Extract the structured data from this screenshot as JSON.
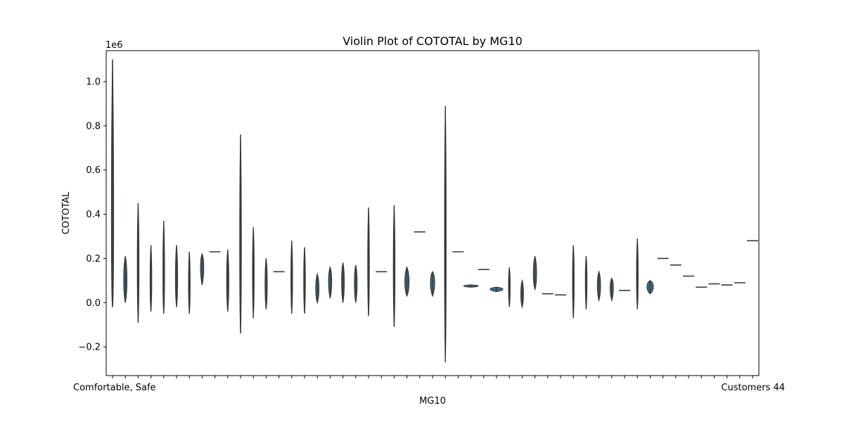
{
  "chart_data": {
    "type": "violin",
    "title": "Violin Plot of COTOTAL by MG10",
    "xlabel": "MG10",
    "ylabel": "COTOTAL",
    "y_offset_label": "1e6",
    "ylim": [
      -0.33,
      1.14
    ],
    "yticks": [
      -0.2,
      0.0,
      0.2,
      0.4,
      0.6,
      0.8,
      1.0
    ],
    "ytick_labels": [
      "−0.2",
      "0.0",
      "0.2",
      "0.4",
      "0.6",
      "0.8",
      "1.0"
    ],
    "grid": false,
    "legend": "none",
    "x_tick_labels_overlapping_text": "Comfortable, Safe",
    "x_tick_labels_overlapping_text_end": "Customers 44",
    "colors": {
      "violin_fill": "#3a6a82",
      "violin_line": "#3a3a3a"
    },
    "violins": [
      {
        "min": -0.02,
        "max": 1.1,
        "center": 0.05,
        "width": 2
      },
      {
        "min": 0.0,
        "max": 0.21,
        "center": 0.08,
        "width": 3
      },
      {
        "min": -0.09,
        "max": 0.45,
        "center": 0.1,
        "width": 1.5
      },
      {
        "min": -0.04,
        "max": 0.26,
        "center": 0.06,
        "width": 1.5
      },
      {
        "min": -0.05,
        "max": 0.37,
        "center": 0.05,
        "width": 1.5
      },
      {
        "min": -0.02,
        "max": 0.26,
        "center": 0.07,
        "width": 2
      },
      {
        "min": -0.05,
        "max": 0.23,
        "center": 0.05,
        "width": 1.5
      },
      {
        "min": 0.08,
        "max": 0.22,
        "center": 0.16,
        "width": 3
      },
      {
        "min": 0.23,
        "max": 0.23,
        "center": 0.23,
        "width": 16
      },
      {
        "min": -0.04,
        "max": 0.24,
        "center": 0.07,
        "width": 2
      },
      {
        "min": -0.14,
        "max": 0.76,
        "center": 0.1,
        "width": 1.5
      },
      {
        "min": -0.07,
        "max": 0.34,
        "center": 0.1,
        "width": 1.5
      },
      {
        "min": -0.03,
        "max": 0.2,
        "center": 0.06,
        "width": 2
      },
      {
        "min": 0.14,
        "max": 0.14,
        "center": 0.14,
        "width": 16
      },
      {
        "min": -0.05,
        "max": 0.28,
        "center": 0.08,
        "width": 1.5
      },
      {
        "min": -0.05,
        "max": 0.25,
        "center": 0.07,
        "width": 1.5
      },
      {
        "min": 0.0,
        "max": 0.13,
        "center": 0.05,
        "width": 3
      },
      {
        "min": 0.02,
        "max": 0.16,
        "center": 0.09,
        "width": 3
      },
      {
        "min": 0.0,
        "max": 0.18,
        "center": 0.08,
        "width": 2.5
      },
      {
        "min": 0.0,
        "max": 0.17,
        "center": 0.08,
        "width": 2.5
      },
      {
        "min": -0.06,
        "max": 0.43,
        "center": 0.1,
        "width": 1.5
      },
      {
        "min": 0.14,
        "max": 0.14,
        "center": 0.14,
        "width": 16
      },
      {
        "min": -0.11,
        "max": 0.44,
        "center": 0.1,
        "width": 1.5
      },
      {
        "min": 0.03,
        "max": 0.16,
        "center": 0.08,
        "width": 4
      },
      {
        "min": 0.32,
        "max": 0.32,
        "center": 0.32,
        "width": 16
      },
      {
        "min": 0.03,
        "max": 0.14,
        "center": 0.09,
        "width": 4
      },
      {
        "min": -0.27,
        "max": 0.89,
        "center": 0.1,
        "width": 1.5
      },
      {
        "min": 0.23,
        "max": 0.23,
        "center": 0.23,
        "width": 16
      },
      {
        "min": 0.07,
        "max": 0.08,
        "center": 0.075,
        "width": 14
      },
      {
        "min": 0.15,
        "max": 0.15,
        "center": 0.15,
        "width": 16
      },
      {
        "min": 0.05,
        "max": 0.07,
        "center": 0.06,
        "width": 12
      },
      {
        "min": -0.02,
        "max": 0.16,
        "center": 0.06,
        "width": 1.5
      },
      {
        "min": -0.02,
        "max": 0.1,
        "center": 0.03,
        "width": 2.5
      },
      {
        "min": 0.06,
        "max": 0.21,
        "center": 0.11,
        "width": 3
      },
      {
        "min": 0.04,
        "max": 0.04,
        "center": 0.04,
        "width": 16
      },
      {
        "min": 0.035,
        "max": 0.035,
        "center": 0.035,
        "width": 16
      },
      {
        "min": -0.07,
        "max": 0.26,
        "center": 0.08,
        "width": 1.5
      },
      {
        "min": -0.03,
        "max": 0.21,
        "center": 0.09,
        "width": 1.5
      },
      {
        "min": 0.01,
        "max": 0.14,
        "center": 0.07,
        "width": 3
      },
      {
        "min": 0.01,
        "max": 0.11,
        "center": 0.07,
        "width": 3
      },
      {
        "min": 0.055,
        "max": 0.055,
        "center": 0.055,
        "width": 16
      },
      {
        "min": -0.03,
        "max": 0.29,
        "center": 0.08,
        "width": 1.5
      },
      {
        "min": 0.04,
        "max": 0.1,
        "center": 0.07,
        "width": 6
      },
      {
        "min": 0.2,
        "max": 0.2,
        "center": 0.2,
        "width": 16
      },
      {
        "min": 0.17,
        "max": 0.17,
        "center": 0.17,
        "width": 16
      },
      {
        "min": 0.12,
        "max": 0.12,
        "center": 0.12,
        "width": 16
      },
      {
        "min": 0.07,
        "max": 0.07,
        "center": 0.07,
        "width": 16
      },
      {
        "min": 0.085,
        "max": 0.085,
        "center": 0.085,
        "width": 16
      },
      {
        "min": 0.08,
        "max": 0.08,
        "center": 0.08,
        "width": 16
      },
      {
        "min": 0.09,
        "max": 0.09,
        "center": 0.09,
        "width": 16
      },
      {
        "min": 0.28,
        "max": 0.28,
        "center": 0.28,
        "width": 16
      }
    ]
  }
}
